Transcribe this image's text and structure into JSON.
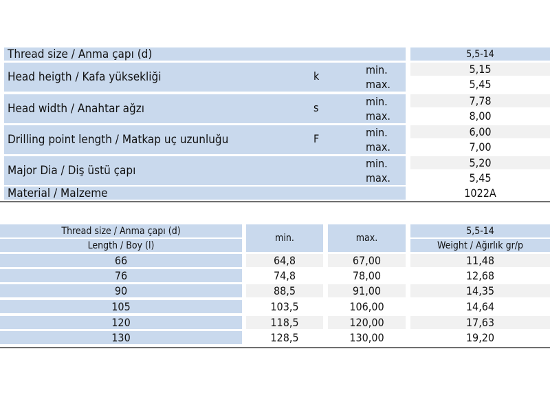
{
  "spec_table": {
    "thread": {
      "label": "Thread size / Anma çapı (d)",
      "value": "5,5-14"
    },
    "rows": [
      {
        "label": "Head heigth / Kafa yüksekliği",
        "symbol": "k",
        "min_label": "min.",
        "max_label": "max.",
        "min": "5,15",
        "max": "5,45"
      },
      {
        "label": "Head width / Anahtar ağzı",
        "symbol": "s",
        "min_label": "min.",
        "max_label": "max.",
        "min": "7,78",
        "max": "8,00"
      },
      {
        "label": "Drilling point length / Matkap uç uzunluğu",
        "symbol": "F",
        "min_label": "min.",
        "max_label": "max.",
        "min": "6,00",
        "max": "7,00"
      },
      {
        "label": "Major Dia / Diş üstü çapı",
        "symbol": "",
        "min_label": "min.",
        "max_label": "max.",
        "min": "5,20",
        "max": "5,45"
      }
    ],
    "material": {
      "label": "Material / Malzeme",
      "value": "1022A"
    }
  },
  "length_table": {
    "header": {
      "thread": "Thread size / Anma çapı (d)",
      "length": "Length / Boy (l)",
      "min": "min.",
      "max": "max.",
      "size": "5,5-14",
      "weight": "Weight / Ağırlık gr/p"
    },
    "rows": [
      {
        "length": "66",
        "min": "64,8",
        "max": "67,00",
        "weight": "11,48"
      },
      {
        "length": "76",
        "min": "74,8",
        "max": "78,00",
        "weight": "12,68"
      },
      {
        "length": "90",
        "min": "88,5",
        "max": "91,00",
        "weight": "14,35"
      },
      {
        "length": "105",
        "min": "103,5",
        "max": "106,00",
        "weight": "14,64"
      },
      {
        "length": "120",
        "min": "118,5",
        "max": "120,00",
        "weight": "17,63"
      },
      {
        "length": "130",
        "min": "128,5",
        "max": "130,00",
        "weight": "19,20"
      }
    ]
  }
}
